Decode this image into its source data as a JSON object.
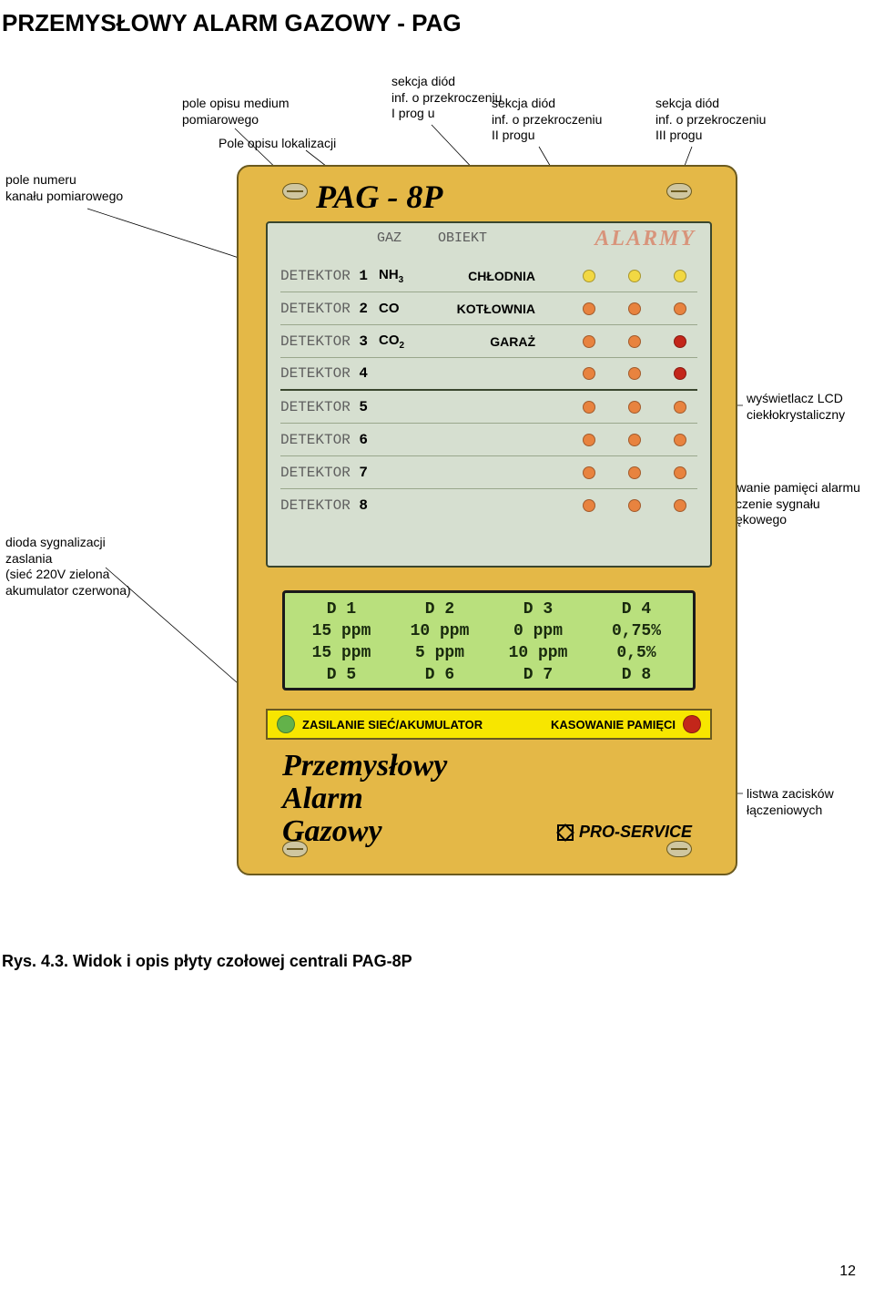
{
  "page_title": "PRZEMYSŁOWY ALARM GAZOWY - PAG",
  "model": "PAG - 8P",
  "headings": {
    "gaz": "GAZ",
    "obiekt": "OBIEKT"
  },
  "alarmy": "ALARMY",
  "detektor_word": "DETEKTOR",
  "rows": [
    {
      "n": "1",
      "gas": "NH",
      "sub": "3",
      "obj": "CHŁODNIA",
      "leds": [
        "#f2d843",
        "#f2d843",
        "#f2d843"
      ]
    },
    {
      "n": "2",
      "gas": "CO",
      "sub": "",
      "obj": "KOTŁOWNIA",
      "leds": [
        "#e8833f",
        "#e8833f",
        "#e8833f"
      ]
    },
    {
      "n": "3",
      "gas": "CO",
      "sub": "2",
      "obj": "GARAŻ",
      "leds": [
        "#e8833f",
        "#e8833f",
        "#c3261a"
      ]
    },
    {
      "n": "4",
      "gas": "",
      "sub": "",
      "obj": "",
      "leds": [
        "#e8833f",
        "#e8833f",
        "#c3261a"
      ]
    },
    {
      "n": "5",
      "gas": "",
      "sub": "",
      "obj": "",
      "leds": [
        "#e8833f",
        "#e8833f",
        "#e8833f"
      ]
    },
    {
      "n": "6",
      "gas": "",
      "sub": "",
      "obj": "",
      "leds": [
        "#e8833f",
        "#e8833f",
        "#e8833f"
      ]
    },
    {
      "n": "7",
      "gas": "",
      "sub": "",
      "obj": "",
      "leds": [
        "#e8833f",
        "#e8833f",
        "#e8833f"
      ]
    },
    {
      "n": "8",
      "gas": "",
      "sub": "",
      "obj": "",
      "leds": [
        "#e8833f",
        "#e8833f",
        "#e8833f"
      ]
    }
  ],
  "lcd": [
    [
      "D 1",
      "D 2",
      "D 3",
      "D 4"
    ],
    [
      "15 ppm",
      "10 ppm",
      "0 ppm",
      "0,75%"
    ],
    [
      "15 ppm",
      "5 ppm",
      "10 ppm",
      "0,5%"
    ],
    [
      "D 5",
      "D 6",
      "D 7",
      "D 8"
    ]
  ],
  "strip": {
    "power_label": "ZASILANIE SIEĆ/AKUMULATOR",
    "power_led": "#63b24a",
    "clear_label": "KASOWANIE PAMIĘCI",
    "clear_btn": "#c3261a"
  },
  "brand_lines": [
    "Przemysłowy",
    "Alarm",
    "Gazowy"
  ],
  "proservice": "PRO-SERVICE",
  "callouts": {
    "c1": "pole numeru\nkanału pomiarowego",
    "c2": "pole opisu medium\npomiarowego",
    "c3": "Pole opisu lokalizacji",
    "c4": "sekcja diód\ninf. o przekroczeniu\nI prog u",
    "c5": "sekcja diód\ninf. o przekroczeniu\nII progu",
    "c6": "sekcja diód\ninf. o przekroczeniu\nIII progu",
    "c7": "wyświetlacz LCD\nciekłokrystaliczny",
    "c8": "kasowanie pamięci alarmu\nwyłączenie sygnału dźwiękowego",
    "c9": "dioda sygnalizacji\nzaslania\n (sieć 220V zielona\n akumulator czerwona)",
    "c10": "listwa zacisków łączeniowych"
  },
  "fig_caption": "Rys. 4.3. Widok i opis płyty czołowej centrali PAG-8P",
  "page_number": "12",
  "colors": {
    "panel": "#e4b847",
    "inner": "#d6dfd0",
    "lcd": "#b9e07d",
    "strip": "#f7e600"
  }
}
